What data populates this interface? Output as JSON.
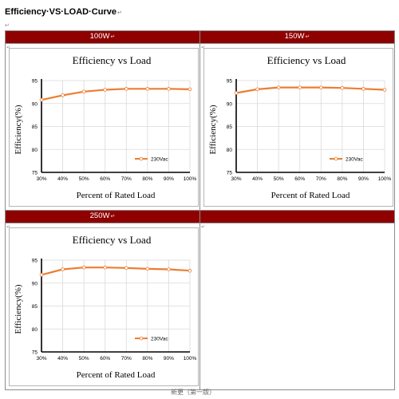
{
  "page": {
    "title": "Efficiency·VS·LOAD·Curve",
    "title_mark": "↵",
    "cell_mark": "↵",
    "footer_text": "新更（第一版）"
  },
  "panels": [
    {
      "header": "100W",
      "header_mark": "↵"
    },
    {
      "header": "150W",
      "header_mark": "↵"
    },
    {
      "header": "250W",
      "header_mark": "↵"
    },
    {
      "header": "",
      "header_mark": ""
    }
  ],
  "colors": {
    "header_bg": "#8f0000",
    "series": "#ed7d31",
    "axis": "#000000",
    "grid": "#d9d9d9"
  },
  "chart_data": [
    {
      "type": "line",
      "title": "Efficiency vs Load",
      "xlabel": "Percent of Rated Load",
      "ylabel": "Efficiency(%)",
      "categories": [
        "30%",
        "40%",
        "50%",
        "60%",
        "70%",
        "80%",
        "90%",
        "100%"
      ],
      "ylim": [
        75,
        95
      ],
      "yticks": [
        "75",
        "80",
        "85",
        "90",
        "95"
      ],
      "grid": true,
      "legend": "bottom-right",
      "series": [
        {
          "name": "230Vac",
          "values": [
            90.8,
            91.8,
            92.6,
            93.0,
            93.2,
            93.2,
            93.2,
            93.1
          ]
        }
      ]
    },
    {
      "type": "line",
      "title": "Efficiency vs Load",
      "xlabel": "Percent of Rated Load",
      "ylabel": "Efficiency(%)",
      "categories": [
        "30%",
        "40%",
        "50%",
        "60%",
        "70%",
        "80%",
        "90%",
        "100%"
      ],
      "ylim": [
        75,
        95
      ],
      "yticks": [
        "75",
        "80",
        "85",
        "90",
        "95"
      ],
      "grid": true,
      "legend": "bottom-right",
      "series": [
        {
          "name": "230Vac",
          "values": [
            92.3,
            93.1,
            93.5,
            93.5,
            93.5,
            93.4,
            93.2,
            93.0
          ]
        }
      ]
    },
    {
      "type": "line",
      "title": "Efficiency vs Load",
      "xlabel": "Percent of Rated Load",
      "ylabel": "Efficiency(%)",
      "categories": [
        "30%",
        "40%",
        "50%",
        "60%",
        "70%",
        "80%",
        "90%",
        "100%"
      ],
      "ylim": [
        75,
        95
      ],
      "yticks": [
        "75",
        "80",
        "85",
        "90",
        "95"
      ],
      "grid": true,
      "legend": "bottom-right",
      "series": [
        {
          "name": "230Vac",
          "values": [
            91.8,
            93.0,
            93.4,
            93.4,
            93.3,
            93.1,
            93.0,
            92.7
          ]
        }
      ]
    }
  ]
}
